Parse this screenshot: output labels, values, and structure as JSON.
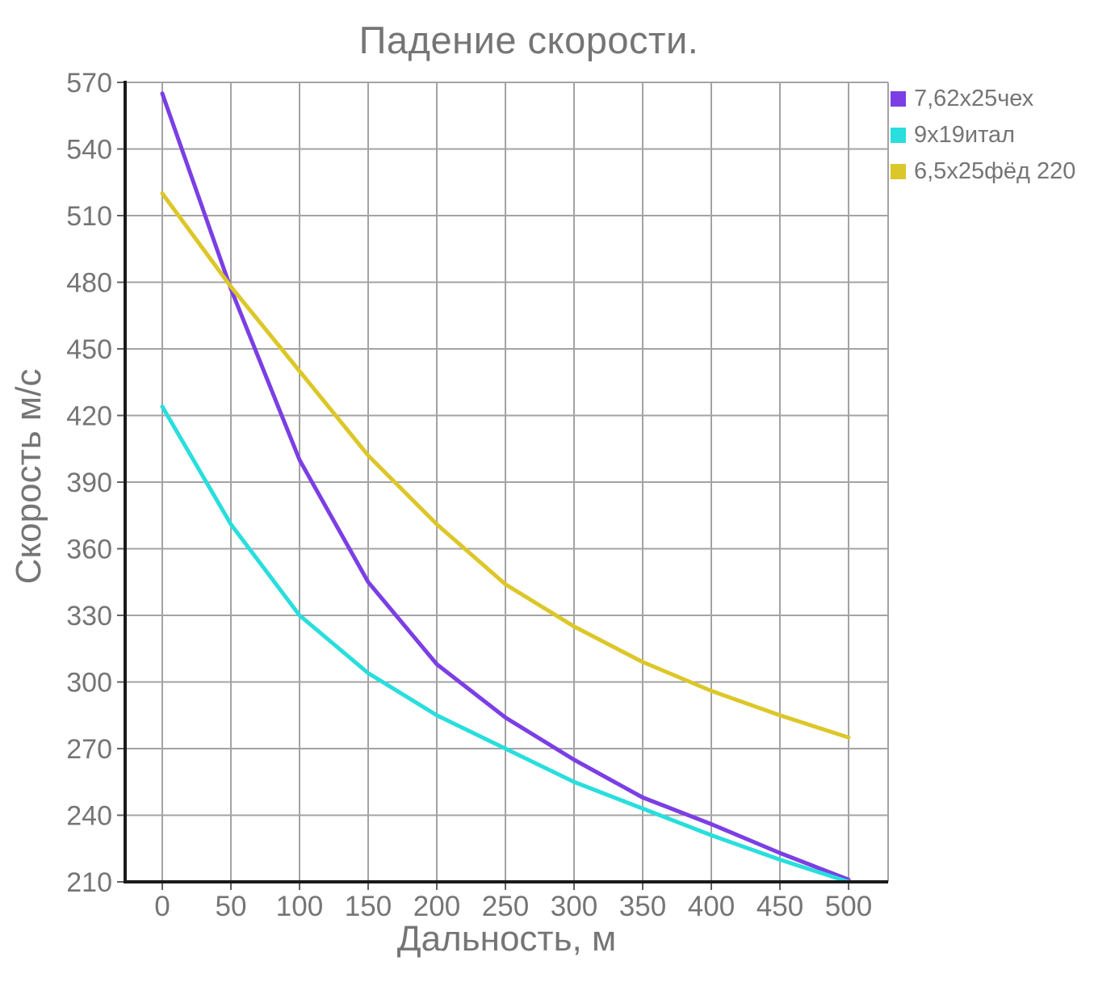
{
  "chart_data": {
    "type": "line",
    "title": "Падение скорости.",
    "xlabel": "Дальность, м",
    "ylabel": "Скорость м/с",
    "x": [
      0,
      50,
      100,
      150,
      200,
      250,
      300,
      350,
      400,
      450,
      500
    ],
    "xlim": [
      0,
      500
    ],
    "ylim": [
      210,
      570
    ],
    "ytick_step": 30,
    "xtick_step": 50,
    "grid": true,
    "legend_position": "top-right",
    "x_tick_labels": [
      "0",
      "50",
      "100",
      "150",
      "200",
      "250",
      "300",
      "350",
      "400",
      "450",
      "500"
    ],
    "y_tick_labels": [
      "210",
      "240",
      "270",
      "300",
      "330",
      "360",
      "390",
      "420",
      "450",
      "480",
      "510",
      "540",
      "570"
    ],
    "series": [
      {
        "name": "7,62х25чех",
        "color": "#7B3FE4",
        "values": [
          565,
          477,
          400,
          345,
          308,
          284,
          265,
          248,
          236,
          223,
          211
        ]
      },
      {
        "name": "9х19итал",
        "color": "#29DEDC",
        "values": [
          424,
          371,
          330,
          304,
          285,
          270,
          255,
          243,
          231,
          220,
          210
        ]
      },
      {
        "name": "6,5х25фёд 220",
        "color": "#DCC72A",
        "values": [
          520,
          478,
          440,
          402,
          371,
          344,
          325,
          309,
          296,
          285,
          275
        ]
      }
    ],
    "colors": {
      "grid": "#A3A3A3",
      "axis": "#1A1A1A",
      "tick": "#616161",
      "text": "#757575"
    }
  }
}
